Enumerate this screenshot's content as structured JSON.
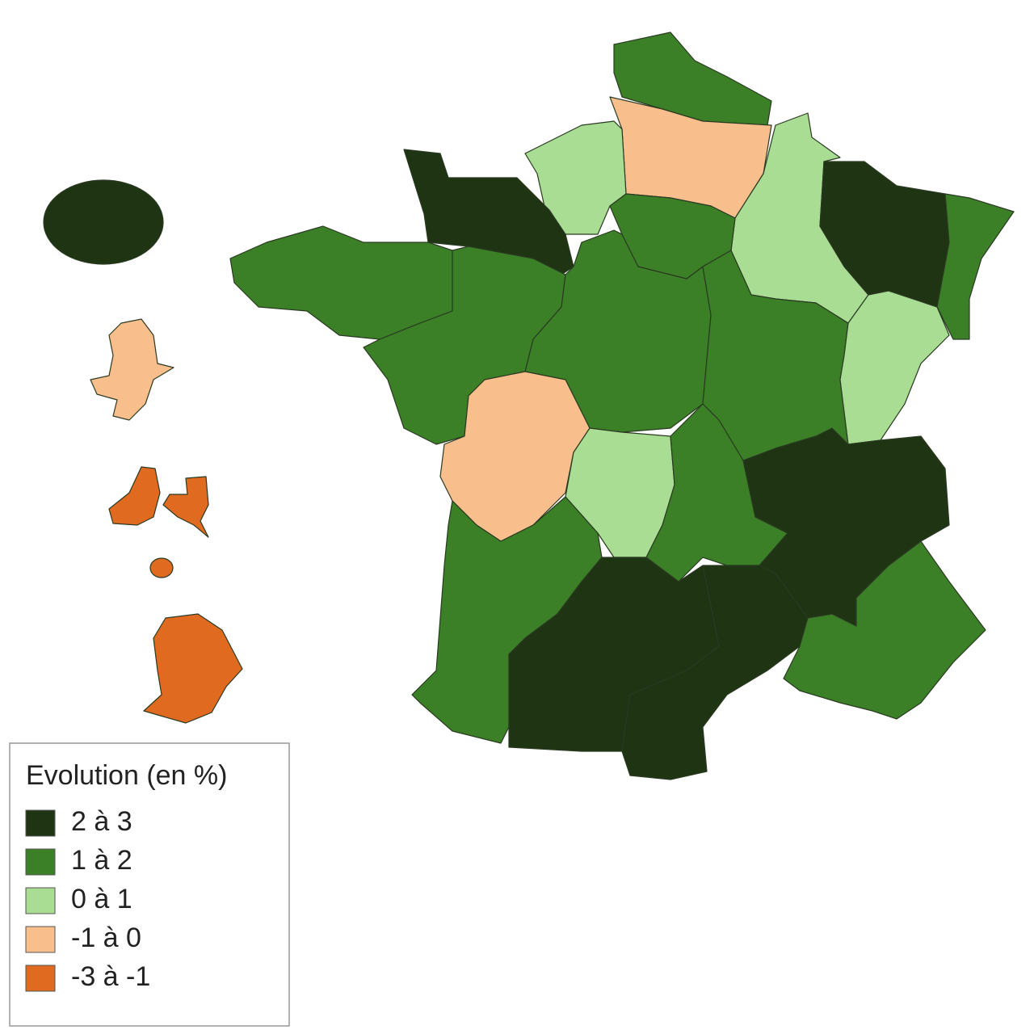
{
  "map": {
    "legend": {
      "title": "Evolution (en %)",
      "classes": [
        {
          "label": "2 à 3",
          "color": "#1f3413"
        },
        {
          "label": "1 à 2",
          "color": "#3b7f27"
        },
        {
          "label": "0 à 1",
          "color": "#aadd94"
        },
        {
          "label": "-1 à 0",
          "color": "#f8bf8d"
        },
        {
          "label": "-3 à -1",
          "color": "#df6a20"
        }
      ]
    }
  }
}
